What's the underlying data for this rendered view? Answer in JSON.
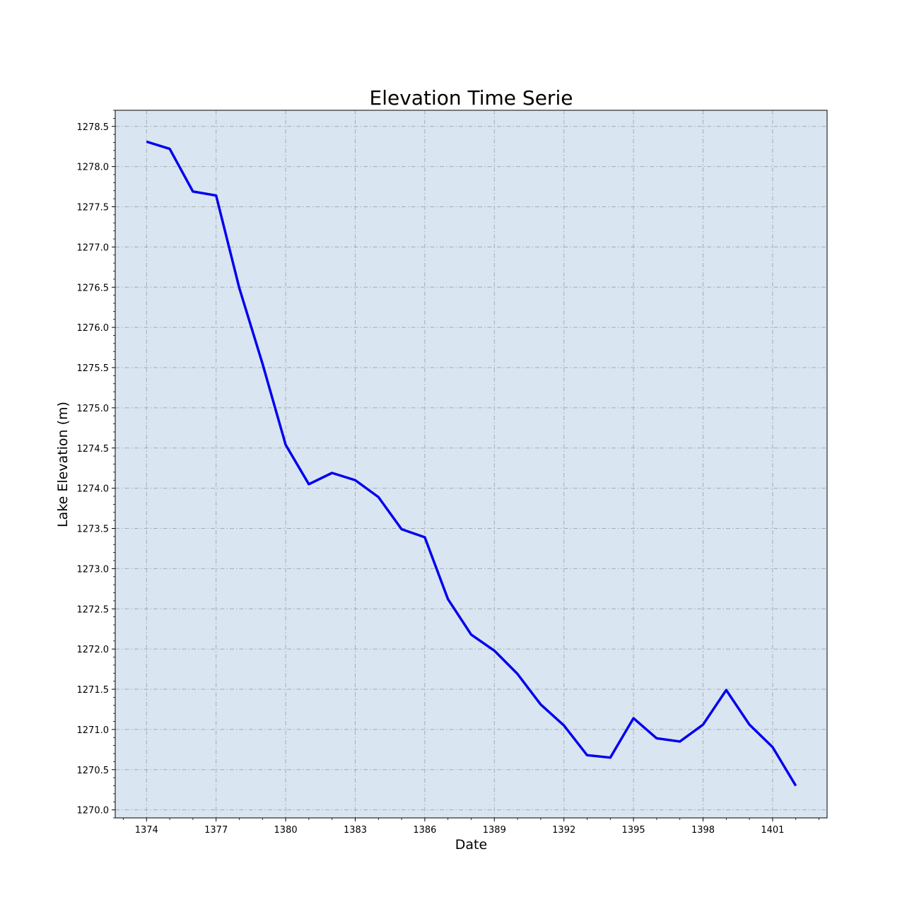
{
  "chart_data": {
    "type": "line",
    "title": "Elevation Time Serie",
    "xlabel": "Date",
    "ylabel": "Lake Elevation (m)",
    "x": [
      1374,
      1375,
      1376,
      1377,
      1378,
      1379,
      1380,
      1381,
      1382,
      1383,
      1384,
      1385,
      1386,
      1387,
      1388,
      1389,
      1390,
      1391,
      1392,
      1393,
      1394,
      1395,
      1396,
      1397,
      1398,
      1399,
      1400,
      1401,
      1402
    ],
    "series": [
      {
        "values": [
          1278.31,
          1278.22,
          1277.69,
          1277.64,
          1276.49,
          1275.55,
          1274.54,
          1274.05,
          1274.19,
          1274.1,
          1273.89,
          1273.49,
          1273.39,
          1272.62,
          1272.18,
          1271.98,
          1271.69,
          1271.31,
          1271.05,
          1270.68,
          1270.65,
          1271.14,
          1270.89,
          1270.85,
          1271.06,
          1271.49,
          1271.06,
          1270.78,
          1270.3
        ],
        "color": "#0000ee"
      }
    ],
    "xlim": [
      1372.65,
      1403.35
    ],
    "ylim": [
      1269.9,
      1278.7
    ],
    "xticks": [
      1374,
      1377,
      1380,
      1383,
      1386,
      1389,
      1392,
      1395,
      1398,
      1401
    ],
    "yticks": [
      1270.0,
      1270.5,
      1271.0,
      1271.5,
      1272.0,
      1272.5,
      1273.0,
      1273.5,
      1274.0,
      1274.5,
      1275.0,
      1275.5,
      1276.0,
      1276.5,
      1277.0,
      1277.5,
      1278.0,
      1278.5
    ],
    "ytick_format": 1,
    "grid": true,
    "background_color": "#d9e5f1"
  }
}
